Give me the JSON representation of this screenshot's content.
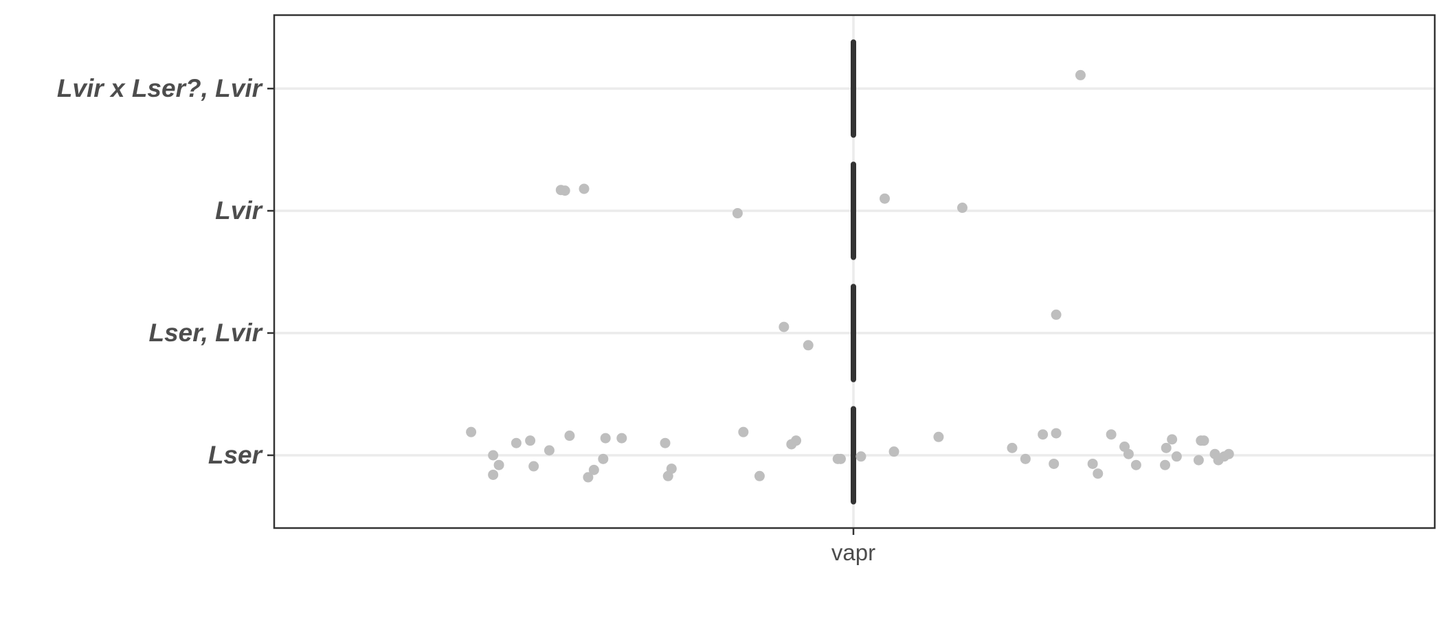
{
  "chart_data": {
    "type": "scatter",
    "title": "",
    "xlabel": "",
    "ylabel": "",
    "categories": [
      "Lser",
      "Lser, Lvir",
      "Lvir",
      "Lvir x Lser?, Lvir"
    ],
    "x_categories": [
      "vapr"
    ],
    "grid": true,
    "legend": "none",
    "colors": {
      "points": "#bebebe",
      "segments": "#333333",
      "grid": "#ebebeb",
      "border": "#333333",
      "text": "#4d4d4d"
    },
    "segments": [
      {
        "category": "Lser",
        "x": "vapr",
        "half_width": 0.38
      },
      {
        "category": "Lser, Lvir",
        "x": "vapr",
        "half_width": 0.38
      },
      {
        "category": "Lvir",
        "x": "vapr",
        "half_width": 0.38
      },
      {
        "category": "Lvir x Lser?, Lvir",
        "x": "vapr",
        "half_width": 0.38
      }
    ],
    "points": [
      {
        "category": "Lvir x Lser?, Lvir",
        "x_offset": 0.392,
        "y_offset": 0.11
      },
      {
        "category": "Lvir",
        "x_offset": -0.505,
        "y_offset": 0.17
      },
      {
        "category": "Lvir",
        "x_offset": -0.498,
        "y_offset": 0.165
      },
      {
        "category": "Lvir",
        "x_offset": -0.465,
        "y_offset": 0.18
      },
      {
        "category": "Lvir",
        "x_offset": -0.2,
        "y_offset": -0.02
      },
      {
        "category": "Lvir",
        "x_offset": 0.054,
        "y_offset": 0.1
      },
      {
        "category": "Lvir",
        "x_offset": 0.188,
        "y_offset": 0.025
      },
      {
        "category": "Lser, Lvir",
        "x_offset": -0.12,
        "y_offset": 0.05
      },
      {
        "category": "Lser, Lvir",
        "x_offset": -0.078,
        "y_offset": -0.1
      },
      {
        "category": "Lser, Lvir",
        "x_offset": 0.35,
        "y_offset": 0.15
      },
      {
        "category": "Lser",
        "x_offset": -0.66,
        "y_offset": 0.19
      },
      {
        "category": "Lser",
        "x_offset": -0.622,
        "y_offset": 0.0
      },
      {
        "category": "Lser",
        "x_offset": -0.622,
        "y_offset": -0.16
      },
      {
        "category": "Lser",
        "x_offset": -0.612,
        "y_offset": -0.08
      },
      {
        "category": "Lser",
        "x_offset": -0.582,
        "y_offset": 0.1
      },
      {
        "category": "Lser",
        "x_offset": -0.558,
        "y_offset": 0.12
      },
      {
        "category": "Lser",
        "x_offset": -0.552,
        "y_offset": -0.09
      },
      {
        "category": "Lser",
        "x_offset": -0.525,
        "y_offset": 0.04
      },
      {
        "category": "Lser",
        "x_offset": -0.49,
        "y_offset": 0.16
      },
      {
        "category": "Lser",
        "x_offset": -0.458,
        "y_offset": -0.18
      },
      {
        "category": "Lser",
        "x_offset": -0.448,
        "y_offset": -0.12
      },
      {
        "category": "Lser",
        "x_offset": -0.432,
        "y_offset": -0.03
      },
      {
        "category": "Lser",
        "x_offset": -0.428,
        "y_offset": 0.14
      },
      {
        "category": "Lser",
        "x_offset": -0.4,
        "y_offset": 0.14
      },
      {
        "category": "Lser",
        "x_offset": -0.325,
        "y_offset": 0.1
      },
      {
        "category": "Lser",
        "x_offset": -0.32,
        "y_offset": -0.17
      },
      {
        "category": "Lser",
        "x_offset": -0.314,
        "y_offset": -0.11
      },
      {
        "category": "Lser",
        "x_offset": -0.19,
        "y_offset": 0.19
      },
      {
        "category": "Lser",
        "x_offset": -0.162,
        "y_offset": -0.17
      },
      {
        "category": "Lser",
        "x_offset": -0.107,
        "y_offset": 0.09
      },
      {
        "category": "Lser",
        "x_offset": -0.099,
        "y_offset": 0.12
      },
      {
        "category": "Lser",
        "x_offset": -0.027,
        "y_offset": -0.03
      },
      {
        "category": "Lser",
        "x_offset": -0.022,
        "y_offset": -0.03
      },
      {
        "category": "Lser",
        "x_offset": 0.013,
        "y_offset": -0.01
      },
      {
        "category": "Lser",
        "x_offset": 0.07,
        "y_offset": 0.03
      },
      {
        "category": "Lser",
        "x_offset": 0.147,
        "y_offset": 0.15
      },
      {
        "category": "Lser",
        "x_offset": 0.274,
        "y_offset": 0.06
      },
      {
        "category": "Lser",
        "x_offset": 0.297,
        "y_offset": -0.03
      },
      {
        "category": "Lser",
        "x_offset": 0.327,
        "y_offset": 0.17
      },
      {
        "category": "Lser",
        "x_offset": 0.346,
        "y_offset": -0.07
      },
      {
        "category": "Lser",
        "x_offset": 0.35,
        "y_offset": 0.18
      },
      {
        "category": "Lser",
        "x_offset": 0.413,
        "y_offset": -0.07
      },
      {
        "category": "Lser",
        "x_offset": 0.422,
        "y_offset": -0.15
      },
      {
        "category": "Lser",
        "x_offset": 0.445,
        "y_offset": 0.17
      },
      {
        "category": "Lser",
        "x_offset": 0.468,
        "y_offset": 0.07
      },
      {
        "category": "Lser",
        "x_offset": 0.475,
        "y_offset": 0.01
      },
      {
        "category": "Lser",
        "x_offset": 0.488,
        "y_offset": -0.08
      },
      {
        "category": "Lser",
        "x_offset": 0.538,
        "y_offset": -0.08
      },
      {
        "category": "Lser",
        "x_offset": 0.54,
        "y_offset": 0.06
      },
      {
        "category": "Lser",
        "x_offset": 0.55,
        "y_offset": 0.13
      },
      {
        "category": "Lser",
        "x_offset": 0.558,
        "y_offset": -0.01
      },
      {
        "category": "Lser",
        "x_offset": 0.6,
        "y_offset": 0.12
      },
      {
        "category": "Lser",
        "x_offset": 0.605,
        "y_offset": 0.12
      },
      {
        "category": "Lser",
        "x_offset": 0.596,
        "y_offset": -0.04
      },
      {
        "category": "Lser",
        "x_offset": 0.624,
        "y_offset": 0.01
      },
      {
        "category": "Lser",
        "x_offset": 0.63,
        "y_offset": -0.04
      },
      {
        "category": "Lser",
        "x_offset": 0.64,
        "y_offset": -0.01
      },
      {
        "category": "Lser",
        "x_offset": 0.648,
        "y_offset": 0.01
      }
    ]
  }
}
